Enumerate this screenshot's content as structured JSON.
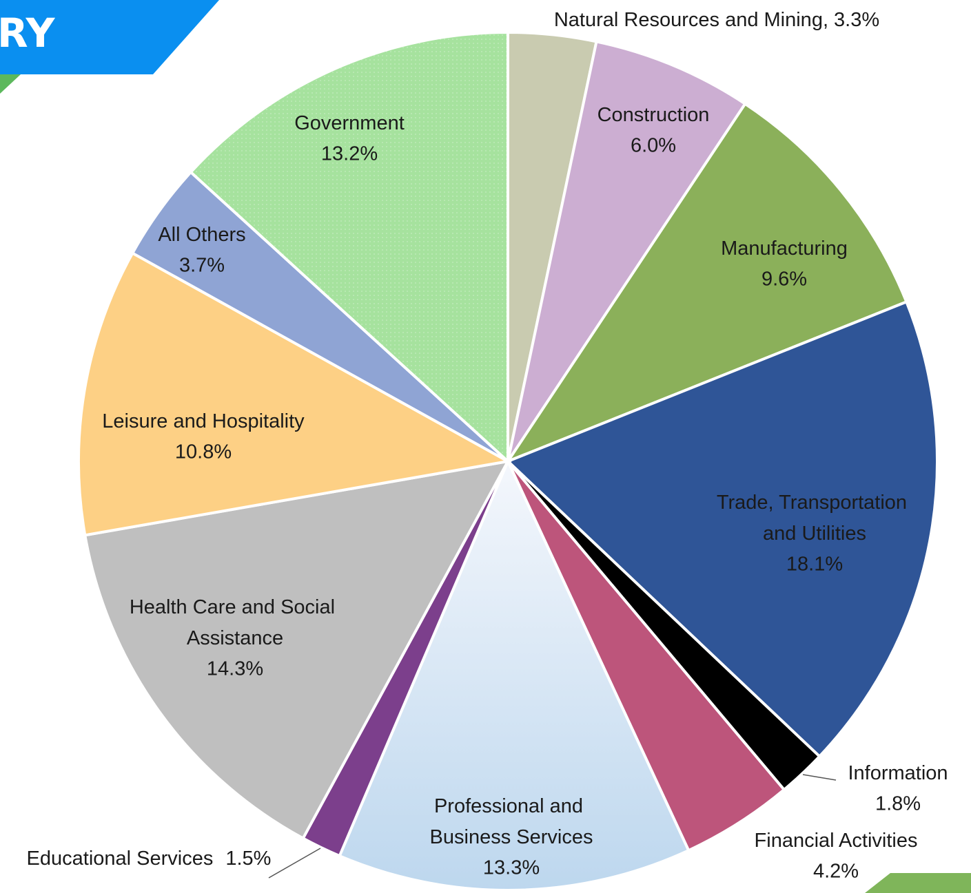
{
  "header": "RY",
  "chart_data": {
    "type": "pie",
    "categories": [
      "Natural Resources and Mining,",
      "Construction",
      "Manufacturing",
      "Trade, Transportation and Utilities",
      "Information",
      "Financial Activities",
      "Professional and Business Services",
      "Educational Services",
      "Health Care and Social Assistance",
      "Leisure and Hospitality",
      "All Others",
      "Government"
    ],
    "values": [
      3.3,
      6.0,
      9.6,
      18.1,
      1.8,
      4.2,
      13.3,
      1.5,
      14.3,
      10.8,
      3.7,
      13.2
    ],
    "value_labels": [
      "3.3%",
      "6.0%",
      "9.6%",
      "18.1%",
      "1.8%",
      "4.2%",
      "13.3%",
      "1.5%",
      "14.3%",
      "10.8%",
      "3.7%",
      "13.2%"
    ],
    "colors": [
      "#c9cbb0",
      "#ccaed2",
      "#8bb05a",
      "#2f5597",
      "#000000",
      "#bd557b",
      "#bdd7ee",
      "#7c3f8c",
      "#bfbfbf",
      "#fdd085",
      "#8fa4d4",
      "#a6e29e"
    ]
  }
}
